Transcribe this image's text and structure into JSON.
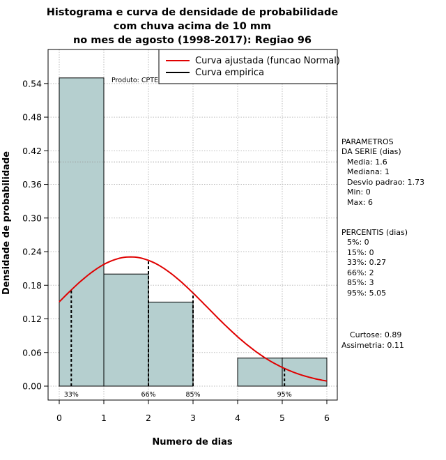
{
  "chart_data": {
    "type": "bar",
    "title_lines": [
      "Histograma e curva de densidade de probabilidade",
      "com chuva acima de 10 mm",
      "no mes de agosto (1998-2017): Regiao 96"
    ],
    "xlabel": "Numero de dias",
    "ylabel": "Densidade de probabilidade",
    "xlim": [
      0,
      6
    ],
    "ylim": [
      0,
      0.6
    ],
    "xticks": [
      "0",
      "1",
      "2",
      "3",
      "4",
      "5",
      "6"
    ],
    "yticks": [
      "0.00",
      "0.06",
      "0.12",
      "0.18",
      "0.24",
      "0.30",
      "0.36",
      "0.42",
      "0.48",
      "0.54"
    ],
    "bins": [
      {
        "start": 0,
        "end": 1,
        "value": 0.55
      },
      {
        "start": 1,
        "end": 2,
        "value": 0.2
      },
      {
        "start": 2,
        "end": 3,
        "value": 0.15
      },
      {
        "start": 3,
        "end": 4,
        "value": 0.0
      },
      {
        "start": 4,
        "end": 5,
        "value": 0.05
      },
      {
        "start": 5,
        "end": 6,
        "value": 0.05
      }
    ],
    "normal_curve": {
      "mean": 1.6,
      "sd": 1.73,
      "color": "#e00000"
    },
    "percentile_markers": [
      {
        "label": "33%",
        "x": 0.27
      },
      {
        "label": "66%",
        "x": 2
      },
      {
        "label": "85%",
        "x": 3
      },
      {
        "label": "95%",
        "x": 5.05
      }
    ],
    "legend": [
      {
        "label": "Curva ajustada (funcao Normal)",
        "color": "#e00000"
      },
      {
        "label": "Curva empirica",
        "color": "#000000"
      }
    ],
    "watermark": "Produto: CPTEC/INPE",
    "bar_color": "#b5cfcf",
    "reference_line_y": 0.4
  },
  "side_panel": {
    "params_title_1": "PARAMETROS",
    "params_title_2": "DA SERIE (dias)",
    "media": "Media: 1.6",
    "mediana": "Mediana: 1",
    "desvio": "Desvio padrao: 1.73",
    "min": "Min: 0",
    "max": "Max: 6",
    "perc_title": "PERCENTIS (dias)",
    "p5": "5%: 0",
    "p15": "15%: 0",
    "p33": "33%: 0.27",
    "p66": "66%: 2",
    "p85": "85%: 3",
    "p95": "95%: 5.05",
    "curtose": "Curtose: 0.89",
    "assimetria": "Assimetria: 0.11"
  }
}
